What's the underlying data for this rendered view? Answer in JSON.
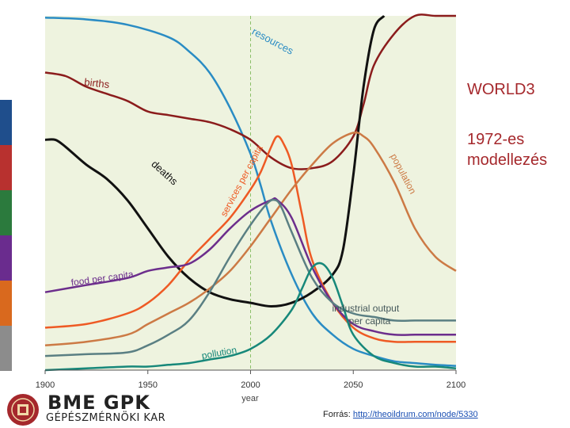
{
  "side_panel": {
    "title": "WORLD3",
    "subtitle_line1": "1972-es",
    "subtitle_line2": "modellezés",
    "strip_colors": [
      "#1f4e8c",
      "#b8312f",
      "#2b7a3d",
      "#6a2c8e",
      "#d9691e",
      "#8c8c8c"
    ]
  },
  "footer": {
    "source_label": "Forrás: ",
    "source_link": "http://theoildrum.com/node/5330"
  },
  "logo": {
    "name": "BME GPK",
    "subtitle": "GÉPÉSZMÉRNÖKI KAR"
  },
  "chart_data": {
    "type": "line",
    "title": "",
    "xlabel": "year",
    "ylabel": "",
    "xlim": [
      1900,
      2100
    ],
    "ylim": [
      0,
      1
    ],
    "x_ticks": [
      "1900",
      "1950",
      "2000",
      "2050",
      "2100"
    ],
    "vline_year": 2000,
    "background": "#eef3df",
    "series": [
      {
        "name": "resources",
        "label": "resources",
        "color": "#2a8cc4",
        "x": [
          1900,
          1920,
          1940,
          1960,
          1970,
          1980,
          1990,
          2000,
          2005,
          2010,
          2020,
          2030,
          2040,
          2050,
          2060,
          2070,
          2080,
          2090,
          2100
        ],
        "y": [
          0.995,
          0.99,
          0.975,
          0.94,
          0.9,
          0.84,
          0.74,
          0.61,
          0.52,
          0.42,
          0.27,
          0.16,
          0.1,
          0.06,
          0.04,
          0.025,
          0.02,
          0.015,
          0.012
        ]
      },
      {
        "name": "births",
        "label": "births",
        "color": "#8b1c1c",
        "x": [
          1900,
          1910,
          1920,
          1930,
          1940,
          1950,
          1960,
          1970,
          1980,
          1990,
          2000,
          2010,
          2020,
          2030,
          2040,
          2050,
          2055,
          2060,
          2070,
          2080,
          2090,
          2100
        ],
        "y": [
          0.84,
          0.83,
          0.8,
          0.78,
          0.76,
          0.73,
          0.72,
          0.71,
          0.7,
          0.68,
          0.65,
          0.6,
          0.57,
          0.57,
          0.59,
          0.66,
          0.75,
          0.86,
          0.95,
          1.0,
          1.0,
          1.0
        ]
      },
      {
        "name": "deaths",
        "label": "deaths",
        "color": "#111111",
        "x": [
          1900,
          1905,
          1910,
          1920,
          1930,
          1940,
          1950,
          1960,
          1970,
          1980,
          1990,
          2000,
          2010,
          2020,
          2030,
          2040,
          2045,
          2050,
          2055,
          2060,
          2065
        ],
        "y": [
          0.65,
          0.65,
          0.63,
          0.58,
          0.54,
          0.48,
          0.4,
          0.32,
          0.26,
          0.22,
          0.2,
          0.19,
          0.18,
          0.19,
          0.22,
          0.27,
          0.34,
          0.55,
          0.8,
          0.96,
          1.0
        ]
      },
      {
        "name": "services per capita",
        "label": "services per capita",
        "color": "#ee5a24",
        "x": [
          1900,
          1920,
          1940,
          1950,
          1960,
          1970,
          1980,
          1990,
          2000,
          2005,
          2010,
          2013,
          2016,
          2020,
          2025,
          2030,
          2040,
          2050,
          2060,
          2070,
          2080,
          2090,
          2100
        ],
        "y": [
          0.12,
          0.13,
          0.16,
          0.19,
          0.24,
          0.31,
          0.37,
          0.43,
          0.51,
          0.56,
          0.63,
          0.66,
          0.64,
          0.58,
          0.44,
          0.31,
          0.19,
          0.12,
          0.09,
          0.08,
          0.08,
          0.08,
          0.08
        ]
      },
      {
        "name": "population",
        "label": "population",
        "color": "#cc7a45",
        "x": [
          1900,
          1920,
          1940,
          1950,
          1960,
          1970,
          1980,
          1990,
          2000,
          2010,
          2020,
          2030,
          2040,
          2050,
          2055,
          2060,
          2070,
          2080,
          2090,
          2100
        ],
        "y": [
          0.07,
          0.08,
          0.1,
          0.13,
          0.16,
          0.19,
          0.23,
          0.28,
          0.35,
          0.43,
          0.51,
          0.58,
          0.64,
          0.67,
          0.66,
          0.63,
          0.53,
          0.4,
          0.32,
          0.28
        ]
      },
      {
        "name": "food per capita",
        "label": "food per capita",
        "color": "#6c2e8c",
        "x": [
          1900,
          1920,
          1940,
          1950,
          1960,
          1970,
          1980,
          1990,
          2000,
          2010,
          2013,
          2020,
          2030,
          2040,
          2050,
          2060,
          2070,
          2080,
          2090,
          2100
        ],
        "y": [
          0.22,
          0.24,
          0.26,
          0.28,
          0.29,
          0.3,
          0.34,
          0.4,
          0.45,
          0.48,
          0.48,
          0.43,
          0.29,
          0.19,
          0.13,
          0.11,
          0.1,
          0.1,
          0.1,
          0.1
        ]
      },
      {
        "name": "industrial output per capita",
        "label": "industrial output per capita",
        "color": "#5a7f83",
        "x": [
          1900,
          1920,
          1940,
          1950,
          1960,
          1970,
          1980,
          1990,
          2000,
          2008,
          2012,
          2015,
          2020,
          2030,
          2040,
          2050,
          2060,
          2070,
          2080,
          2090,
          2100
        ],
        "y": [
          0.04,
          0.045,
          0.05,
          0.07,
          0.1,
          0.14,
          0.22,
          0.32,
          0.41,
          0.47,
          0.48,
          0.46,
          0.39,
          0.26,
          0.19,
          0.16,
          0.15,
          0.14,
          0.14,
          0.14,
          0.14
        ]
      },
      {
        "name": "pollution",
        "label": "pollution",
        "color": "#17887a",
        "x": [
          1900,
          1920,
          1940,
          1950,
          1960,
          1970,
          1980,
          1990,
          2000,
          2010,
          2020,
          2025,
          2030,
          2035,
          2040,
          2045,
          2050,
          2060,
          2070,
          2080,
          2090,
          2100
        ],
        "y": [
          0.0,
          0.005,
          0.01,
          0.01,
          0.015,
          0.02,
          0.03,
          0.04,
          0.06,
          0.1,
          0.17,
          0.23,
          0.29,
          0.3,
          0.26,
          0.18,
          0.1,
          0.04,
          0.02,
          0.01,
          0.01,
          0.005
        ]
      }
    ]
  }
}
